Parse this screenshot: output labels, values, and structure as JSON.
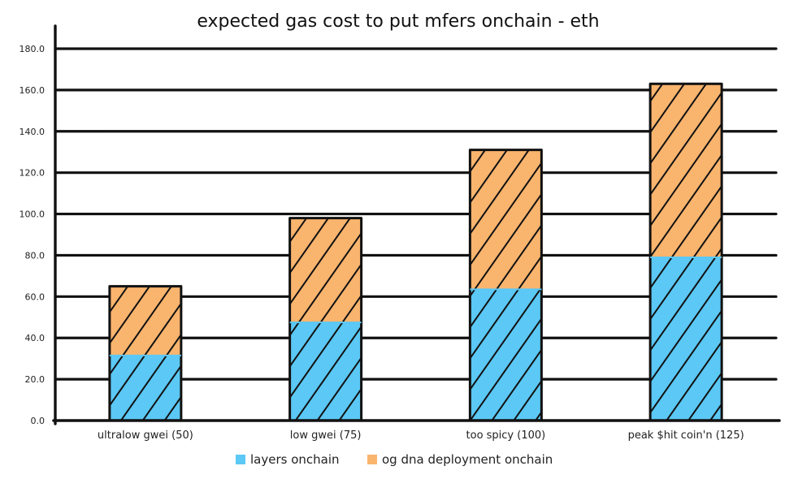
{
  "chart_data": {
    "type": "bar",
    "stacked": true,
    "title": "expected gas cost to put mfers onchain - eth",
    "xlabel": "",
    "ylabel": "",
    "ylim": [
      0,
      180
    ],
    "yticks": [
      "0.0",
      "20.0",
      "40.0",
      "60.0",
      "80.0",
      "100.0",
      "120.0",
      "140.0",
      "160.0",
      "180.0"
    ],
    "grid": true,
    "legend_position": "bottom",
    "categories": [
      "ultralow gwei (50)",
      "low gwei (75)",
      "too spicy (100)",
      "peak $hit coin'n (125)"
    ],
    "series": [
      {
        "name": "layers onchain",
        "color": "#5bc8f5",
        "values": [
          31.5,
          47.5,
          63.5,
          79.0
        ]
      },
      {
        "name": "og dna deployment onchain",
        "color": "#f9b46e",
        "values": [
          33.5,
          50.5,
          67.5,
          84.0
        ]
      }
    ]
  }
}
